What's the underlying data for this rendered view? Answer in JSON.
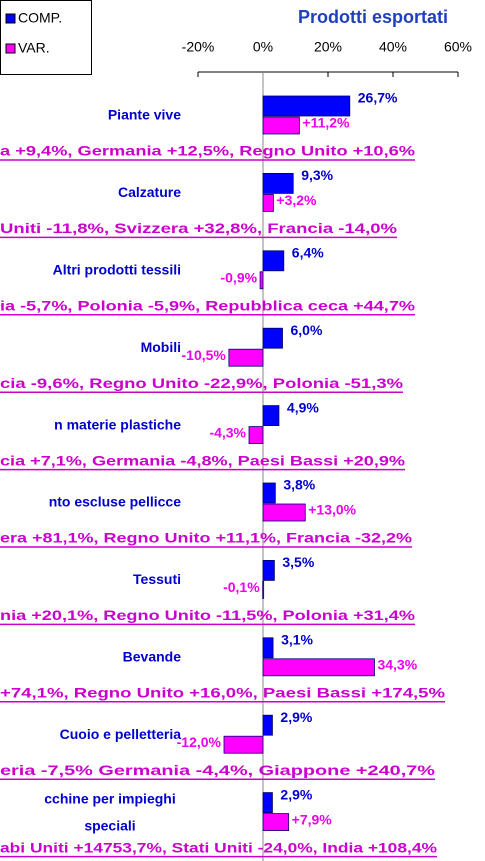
{
  "chart_data": {
    "type": "bar",
    "orientation": "horizontal",
    "title": "Prodotti esportati",
    "categories": [
      "Piante vive",
      "Calzature",
      "Altri prodotti tessili",
      "Mobili",
      "n materie plastiche",
      "nto escluse pellicce",
      "Tessuti",
      "Bevande",
      "Cuoio e pelletteria",
      "cchine per impieghi\nspeciali"
    ],
    "series": [
      {
        "name": "COMP.",
        "color": "#0000ff",
        "values": [
          26.7,
          9.3,
          6.4,
          6.0,
          4.9,
          3.8,
          3.5,
          3.1,
          2.9,
          2.9
        ],
        "value_labels": [
          "26,7%",
          "9,3%",
          "6,4%",
          "6,0%",
          "4,9%",
          "3,8%",
          "3,5%",
          "3,1%",
          "2,9%",
          "2,9%"
        ]
      },
      {
        "name": "VAR.",
        "color": "#ff00ff",
        "values": [
          11.2,
          3.2,
          -0.9,
          -10.5,
          -4.3,
          13.0,
          -0.1,
          34.3,
          -12.0,
          7.9
        ],
        "value_labels": [
          "+11,2%",
          "+3,2%",
          "-0,9%",
          "-10,5%",
          "-4,3%",
          "+13,0%",
          "-0,1%",
          "34,3%",
          "-12,0%",
          "+7,9%"
        ]
      }
    ],
    "annotations": [
      "a +9,4%, Germania +12,5%, Regno Unito +10,6%",
      " Uniti -11,8%, Svizzera +32,8%, Francia -14,0%",
      "ia -5,7%, Polonia -5,9%, Repubblica ceca +44,7%",
      "cia -9,6%, Regno Unito -22,9%, Polonia -51,3%",
      "cia +7,1%, Germania -4,8%, Paesi Bassi +20,9%",
      "era +81,1%, Regno Unito +11,1%, Francia -32,2%",
      "nia +20,1%, Regno Unito -11,5%, Polonia +31,4%",
      " +74,1%, Regno Unito +16,0%, Paesi Bassi +174,5%",
      "eria -7,5%  Germania -4,4%, Giappone +240,7%",
      "abi Uniti +14753,7%, Stati Uniti -24,0%, India +108,4%"
    ],
    "xlim": [
      -20,
      60
    ],
    "xticks": [
      {
        "value": -20,
        "label": "-20%"
      },
      {
        "value": 0,
        "label": "0%"
      },
      {
        "value": 20,
        "label": "20%"
      },
      {
        "value": 40,
        "label": "40%"
      },
      {
        "value": 60,
        "label": "60%"
      }
    ],
    "legend": "top-left"
  }
}
